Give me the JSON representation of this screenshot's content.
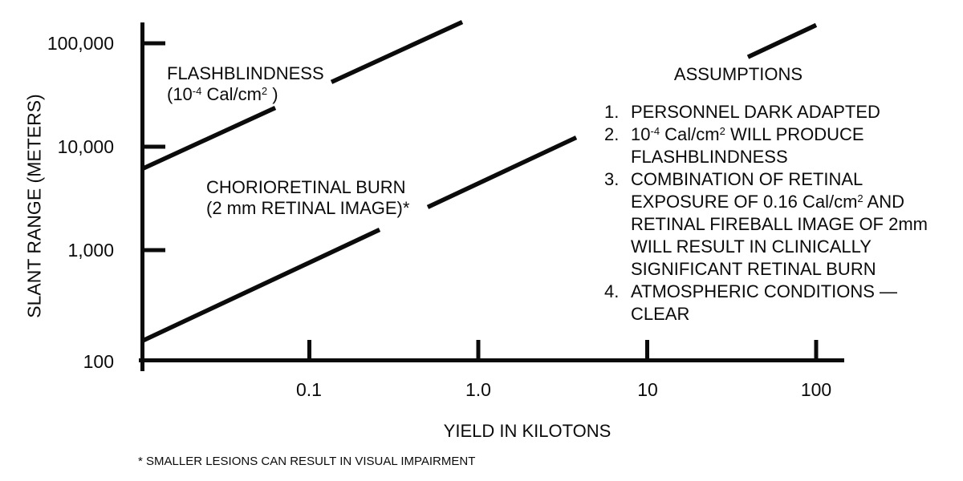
{
  "footnote": "* SMALLER LESIONS CAN RESULT IN VISUAL IMPAIRMENT",
  "annotations": {
    "flashblindness": {
      "line1": "FLASHBLINDNESS",
      "line2": [
        {
          "t": "txt",
          "v": "(10"
        },
        {
          "t": "sup",
          "v": "-4"
        },
        {
          "t": "txt",
          "v": "  Cal/cm"
        },
        {
          "t": "sup",
          "v": "2"
        },
        {
          "t": "txt",
          "v": " )"
        }
      ]
    },
    "chorioretinal": {
      "line1": "CHORIORETINAL BURN",
      "line2": "(2 mm RETINAL IMAGE)*"
    }
  },
  "assumptions": {
    "heading": "ASSUMPTIONS",
    "rows": [
      {
        "num": "1.",
        "line": [
          {
            "t": "txt",
            "v": "PERSONNEL DARK ADAPTED"
          }
        ]
      },
      {
        "num": "2.",
        "line": [
          {
            "t": "txt",
            "v": "10"
          },
          {
            "t": "sup",
            "v": "-4"
          },
          {
            "t": "txt",
            "v": " Cal/cm"
          },
          {
            "t": "sup",
            "v": "2"
          },
          {
            "t": "txt",
            "v": "  WILL PRODUCE"
          }
        ]
      },
      {
        "num": "",
        "line": [
          {
            "t": "txt",
            "v": "FLASHBLINDNESS"
          }
        ]
      },
      {
        "num": "3.",
        "line": [
          {
            "t": "txt",
            "v": "COMBINATION OF RETINAL"
          }
        ]
      },
      {
        "num": "",
        "line": [
          {
            "t": "txt",
            "v": "EXPOSURE OF 0.16 Cal/cm"
          },
          {
            "t": "sup",
            "v": "2"
          },
          {
            "t": "txt",
            "v": " AND"
          }
        ]
      },
      {
        "num": "",
        "line": [
          {
            "t": "txt",
            "v": "RETINAL FIREBALL IMAGE OF 2mm"
          }
        ]
      },
      {
        "num": "",
        "line": [
          {
            "t": "txt",
            "v": "WILL RESULT IN CLINICALLY"
          }
        ]
      },
      {
        "num": "",
        "line": [
          {
            "t": "txt",
            "v": "SIGNIFICANT RETINAL BURN"
          }
        ]
      },
      {
        "num": "4.",
        "line": [
          {
            "t": "txt",
            "v": "ATMOSPHERIC CONDITIONS —"
          }
        ]
      },
      {
        "num": "",
        "line": [
          {
            "t": "txt",
            "v": "CLEAR"
          }
        ]
      }
    ]
  },
  "chart_data": {
    "type": "line",
    "title": "",
    "xlabel": "YIELD IN KILOTONS",
    "ylabel": "SLANT RANGE (METERS)",
    "x_scale": "log",
    "y_scale": "log",
    "xlim": [
      0.01,
      150
    ],
    "ylim": [
      100,
      160000
    ],
    "grid": false,
    "legend": "none (labels annotated on chart)",
    "line_color": "#0b0b0b",
    "background": "#ffffff",
    "xticks": [
      {
        "label": "0.1",
        "value": 0.1
      },
      {
        "label": "1.0",
        "value": 1.0
      },
      {
        "label": "10",
        "value": 10
      },
      {
        "label": "100",
        "value": 100
      }
    ],
    "yticks": [
      {
        "label": "100,000",
        "value": 100000,
        "tick": true
      },
      {
        "label": "10,000",
        "value": 10000,
        "tick": true
      },
      {
        "label": "1,000",
        "value": 1000,
        "tick": true
      },
      {
        "label": "100",
        "value": 100,
        "tick": false
      }
    ],
    "series": [
      {
        "name": "FLASHBLINDNESS (10⁻⁴ Cal/cm²)",
        "points": [
          [
            0.01,
            6000
          ],
          [
            0.8,
            160000
          ]
        ]
      },
      {
        "name": "CHORIORETINAL BURN (2 mm RETINAL IMAGE)",
        "points": [
          [
            0.01,
            130
          ],
          [
            100,
            150000
          ]
        ]
      }
    ]
  }
}
